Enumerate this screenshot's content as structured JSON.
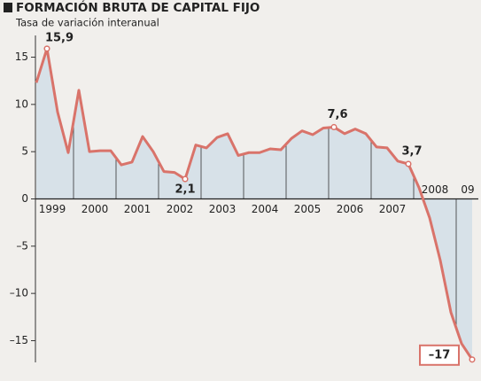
{
  "chart_data": {
    "type": "line",
    "title": "FORMACIÓN BRUTA DE CAPITAL FIJO",
    "subtitle": "Tasa de variación interanual",
    "categories": [
      null,
      null,
      null,
      null,
      null,
      null,
      null,
      null,
      null,
      null,
      null,
      null,
      null,
      null,
      null,
      null,
      null,
      null,
      null,
      null,
      null,
      null,
      null,
      null,
      null,
      null,
      null,
      null,
      null,
      null,
      null,
      null,
      null,
      null,
      null,
      null,
      null,
      null,
      null,
      null,
      null,
      null
    ],
    "year_labels": [
      "1999",
      "2000",
      "2001",
      "2002",
      "2003",
      "2004",
      "2005",
      "2006",
      "2007",
      "2008",
      "09"
    ],
    "series": [
      {
        "name": null,
        "color": "#d9736a",
        "values": [
          12.3,
          15.9,
          9.2,
          4.9,
          11.5,
          5.0,
          5.1,
          5.1,
          3.6,
          3.9,
          6.6,
          5.0,
          2.9,
          2.8,
          2.1,
          5.7,
          5.4,
          6.5,
          6.9,
          4.6,
          4.9,
          4.9,
          5.3,
          5.2,
          6.4,
          7.2,
          6.8,
          7.5,
          7.6,
          6.9,
          7.4,
          6.9,
          5.5,
          5.4,
          4.0,
          3.7,
          1.2,
          -2.0,
          -6.5,
          -12.0,
          -15.3,
          -17
        ],
        "value_labels": [
          null,
          "15,9",
          null,
          null,
          null,
          null,
          null,
          null,
          null,
          null,
          null,
          null,
          null,
          null,
          "2,1",
          null,
          null,
          null,
          null,
          null,
          null,
          null,
          null,
          null,
          null,
          null,
          null,
          null,
          "7,6",
          null,
          null,
          null,
          null,
          null,
          null,
          "3,7",
          null,
          null,
          null,
          null,
          null,
          "–17"
        ]
      }
    ],
    "ylim": [
      -17.3,
      17.3
    ],
    "yticks": [
      15,
      10,
      5,
      0,
      {
        "value": -5,
        "label": "–5"
      },
      {
        "value": -10,
        "label": "–10"
      },
      {
        "value": -15,
        "label": "–15"
      }
    ],
    "area_color": "#d7e1e8"
  }
}
